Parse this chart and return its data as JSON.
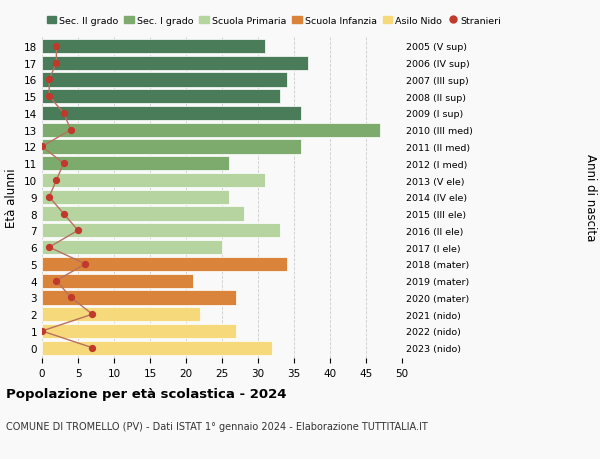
{
  "ages": [
    18,
    17,
    16,
    15,
    14,
    13,
    12,
    11,
    10,
    9,
    8,
    7,
    6,
    5,
    4,
    3,
    2,
    1,
    0
  ],
  "bar_values": [
    31,
    37,
    34,
    33,
    36,
    47,
    36,
    26,
    31,
    26,
    28,
    33,
    25,
    34,
    21,
    27,
    22,
    27,
    32
  ],
  "bar_colors": [
    "#4a7c59",
    "#4a7c59",
    "#4a7c59",
    "#4a7c59",
    "#4a7c59",
    "#7dab6e",
    "#7dab6e",
    "#7dab6e",
    "#b5d4a0",
    "#b5d4a0",
    "#b5d4a0",
    "#b5d4a0",
    "#b5d4a0",
    "#d9843a",
    "#d9843a",
    "#d9843a",
    "#f5d97a",
    "#f5d97a",
    "#f5d97a"
  ],
  "right_labels": [
    "2005 (V sup)",
    "2006 (IV sup)",
    "2007 (III sup)",
    "2008 (II sup)",
    "2009 (I sup)",
    "2010 (III med)",
    "2011 (II med)",
    "2012 (I med)",
    "2013 (V ele)",
    "2014 (IV ele)",
    "2015 (III ele)",
    "2016 (II ele)",
    "2017 (I ele)",
    "2018 (mater)",
    "2019 (mater)",
    "2020 (mater)",
    "2021 (nido)",
    "2022 (nido)",
    "2023 (nido)"
  ],
  "stranieri_values": [
    2,
    2,
    1,
    1,
    3,
    4,
    0,
    3,
    2,
    1,
    3,
    5,
    1,
    6,
    2,
    4,
    7,
    0,
    7
  ],
  "ylabel_left": "Età alunni",
  "ylabel_right": "Anni di nascita",
  "xlim": [
    0,
    50
  ],
  "xticks": [
    0,
    5,
    10,
    15,
    20,
    25,
    30,
    35,
    40,
    45,
    50
  ],
  "title": "Popolazione per età scolastica - 2024",
  "subtitle": "COMUNE DI TROMELLO (PV) - Dati ISTAT 1° gennaio 2024 - Elaborazione TUTTITALIA.IT",
  "legend_labels": [
    "Sec. II grado",
    "Sec. I grado",
    "Scuola Primaria",
    "Scuola Infanzia",
    "Asilo Nido",
    "Stranieri"
  ],
  "legend_colors": [
    "#4a7c59",
    "#7dab6e",
    "#b5d4a0",
    "#d9843a",
    "#f5d97a",
    "#c0392b"
  ],
  "stranieri_color": "#c0392b",
  "stranieri_line_color": "#b87060",
  "grid_color": "#cccccc",
  "bar_edge_color": "white",
  "background_color": "#f9f9f9"
}
